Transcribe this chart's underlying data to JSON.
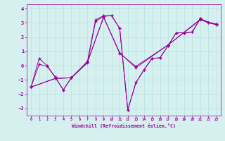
{
  "xlabel": "Windchill (Refroidissement éolien,°C)",
  "ylabel": "",
  "bg_color": "#d6f0f0",
  "line_color": "#990099",
  "marker": "+",
  "xlim": [
    -0.5,
    23.5
  ],
  "ylim": [
    -3.5,
    4.3
  ],
  "xticks": [
    0,
    1,
    2,
    3,
    4,
    5,
    6,
    7,
    8,
    9,
    10,
    11,
    12,
    13,
    14,
    15,
    16,
    17,
    18,
    19,
    20,
    21,
    22,
    23
  ],
  "yticks": [
    -3,
    -2,
    -1,
    0,
    1,
    2,
    3,
    4
  ],
  "series": [
    [
      [
        0,
        1,
        2,
        3,
        4,
        5,
        7,
        8,
        9,
        10,
        11,
        12,
        13,
        14,
        15,
        16,
        17,
        18,
        19,
        20,
        21,
        22,
        23
      ],
      [
        -1.5,
        0.5,
        0.0,
        -0.8,
        -1.7,
        -0.85,
        0.3,
        3.2,
        3.5,
        3.5,
        2.6,
        -3.1,
        -1.2,
        -0.3,
        0.5,
        0.55,
        1.4,
        2.3,
        2.3,
        2.35,
        3.3,
        3.0,
        2.9
      ]
    ],
    [
      [
        0,
        1,
        2,
        3,
        4,
        5,
        7,
        8,
        9,
        10,
        11,
        12,
        13,
        14,
        15,
        16,
        17,
        18,
        19,
        20,
        21,
        22,
        23
      ],
      [
        -1.5,
        0.1,
        -0.05,
        -0.8,
        -1.7,
        -0.85,
        0.2,
        3.1,
        3.45,
        3.5,
        2.6,
        -3.1,
        -1.2,
        -0.3,
        0.5,
        0.55,
        1.4,
        2.3,
        2.3,
        2.35,
        3.3,
        3.0,
        2.9
      ]
    ],
    [
      [
        0,
        3,
        5,
        7,
        9,
        11,
        13,
        17,
        21,
        23
      ],
      [
        -1.5,
        -0.9,
        -0.85,
        0.25,
        3.4,
        0.9,
        -0.15,
        1.45,
        3.25,
        2.88
      ]
    ],
    [
      [
        0,
        3,
        5,
        7,
        9,
        11,
        13,
        17,
        21,
        23
      ],
      [
        -1.5,
        -0.9,
        -0.85,
        0.25,
        3.4,
        0.85,
        -0.05,
        1.45,
        3.2,
        2.85
      ]
    ]
  ]
}
